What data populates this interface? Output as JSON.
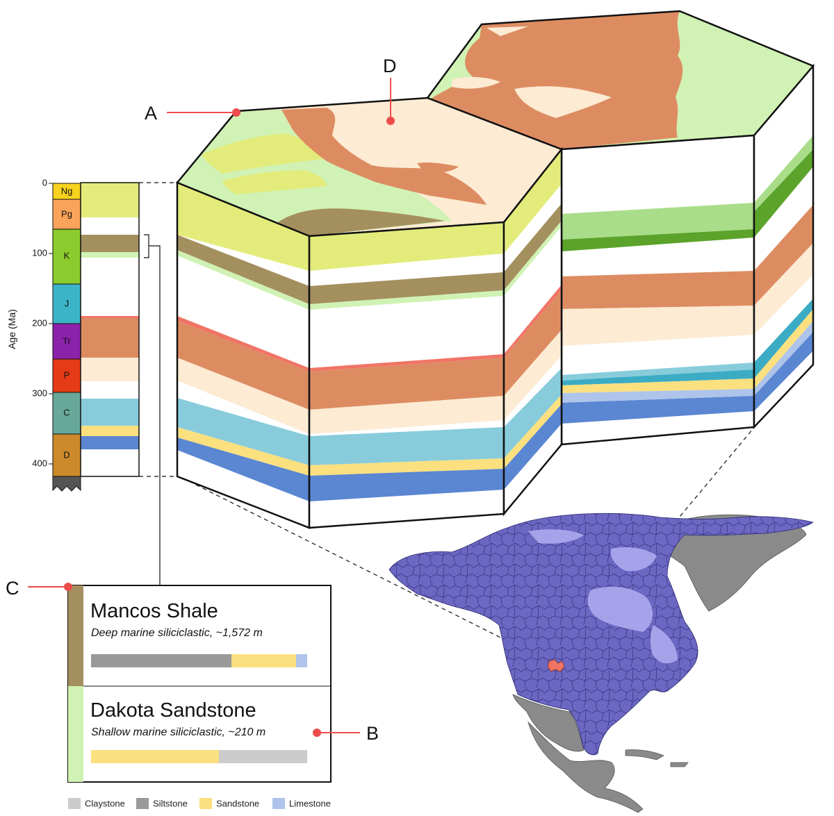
{
  "callouts": {
    "a": "A",
    "b": "B",
    "c": "C",
    "d": "D"
  },
  "timescale": {
    "axis_label": "Age (Ma)",
    "ticks": [
      "0",
      "100",
      "200",
      "300",
      "400"
    ],
    "periods": [
      {
        "abbr": "Ng",
        "color": "#f7d21f"
      },
      {
        "abbr": "Pg",
        "color": "#f9a45a"
      },
      {
        "abbr": "K",
        "color": "#8ccb2d"
      },
      {
        "abbr": "J",
        "color": "#3cb4c8"
      },
      {
        "abbr": "Tr",
        "color": "#8d22aa"
      },
      {
        "abbr": "P",
        "color": "#e63b17"
      },
      {
        "abbr": "C",
        "color": "#67a899"
      },
      {
        "abbr": "D",
        "color": "#cc8a2c"
      }
    ]
  },
  "formations": [
    {
      "name": "Mancos Shale",
      "description": "Deep marine siliciclastic, ~1,572 m",
      "color": "#a48f5f",
      "composition": {
        "siltstone": 0.65,
        "sandstone": 0.3,
        "limestone": 0.05
      }
    },
    {
      "name": "Dakota Sandstone",
      "description": "Shallow marine siliciclastic, ~210 m",
      "color": "#d0f2b4",
      "composition": {
        "sandstone": 0.59,
        "claystone": 0.41
      }
    }
  ],
  "legend": [
    {
      "label": "Claystone",
      "color": "#cccccc"
    },
    {
      "label": "Siltstone",
      "color": "#999999"
    },
    {
      "label": "Sandstone",
      "color": "#fbe07f"
    },
    {
      "label": "Limestone",
      "color": "#aec4ea"
    }
  ],
  "colors": {
    "terracotta": "#dd8c62",
    "peach": "#fdebd3",
    "olive_green": "#e3ec7b",
    "pale_green": "#d0f2b4",
    "brown_olive": "#a48f5f",
    "light_blue": "#88ccdc",
    "yellow": "#fbe07f",
    "blue": "#5a86d2",
    "dark_green": "#5ba32a",
    "mid_green": "#a9dd8a",
    "map_fill": "#6b67c2",
    "map_light": "#aeaaf0",
    "map_gray": "#8a8a8a",
    "highlight_red": "#f07466",
    "callout_red": "#ee4c4c"
  }
}
